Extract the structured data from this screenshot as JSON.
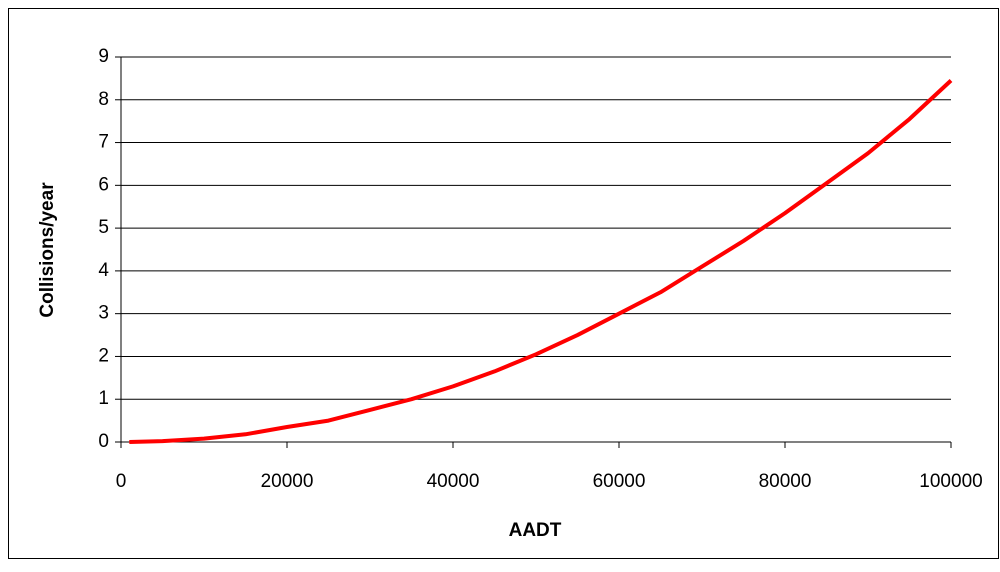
{
  "chart_data": {
    "type": "line",
    "x_label": "AADT",
    "y_label": "Collisions/year",
    "x": [
      1000,
      5000,
      10000,
      15000,
      20000,
      25000,
      30000,
      35000,
      40000,
      45000,
      50000,
      55000,
      60000,
      65000,
      70000,
      75000,
      80000,
      85000,
      90000,
      95000,
      100000
    ],
    "series": [
      {
        "color": "#ff0000",
        "values": [
          0,
          0.02,
          0.08,
          0.18,
          0.35,
          0.5,
          0.75,
          1.0,
          1.3,
          1.65,
          2.05,
          2.5,
          3.0,
          3.5,
          4.1,
          4.7,
          5.35,
          6.05,
          6.75,
          7.55,
          8.45
        ]
      }
    ],
    "xlim": [
      0,
      100000
    ],
    "xticks": [
      0,
      20000,
      40000,
      60000,
      80000,
      100000
    ],
    "ylim": [
      0,
      9
    ],
    "yticks": [
      0,
      1,
      2,
      3,
      4,
      5,
      6,
      7,
      8,
      9
    ],
    "grid": true
  }
}
